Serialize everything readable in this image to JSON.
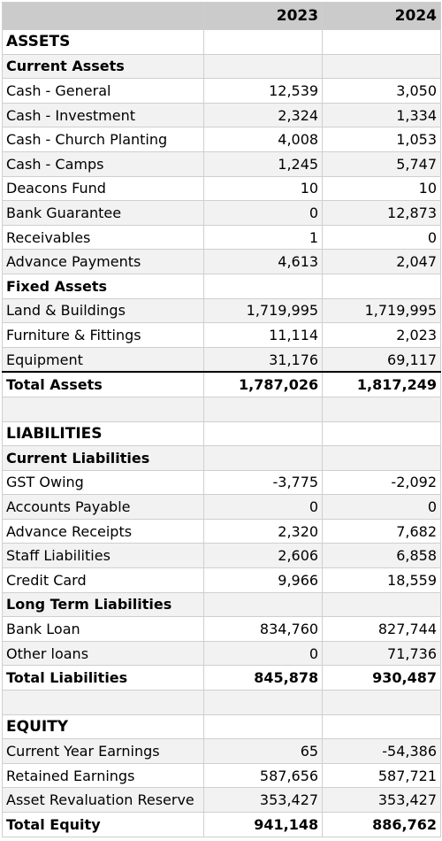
{
  "header": {
    "columns": [
      "2023",
      "2024"
    ]
  },
  "sections": [
    {
      "title": "ASSETS",
      "groups": [
        {
          "title": "Current Assets",
          "rows": [
            [
              "Cash - General",
              "12,539",
              "3,050"
            ],
            [
              "Cash - Investment",
              "2,324",
              "1,334"
            ],
            [
              "Cash - Church Planting",
              "4,008",
              "1,053"
            ],
            [
              "Cash - Camps",
              "1,245",
              "5,747"
            ],
            [
              "Deacons Fund",
              "10",
              "10"
            ],
            [
              "Bank Guarantee",
              "0",
              "12,873"
            ],
            [
              "Receivables",
              "1",
              "0"
            ],
            [
              "Advance Payments",
              "4,613",
              "2,047"
            ]
          ]
        },
        {
          "title": "Fixed Assets",
          "rows": [
            [
              "Land & Buildings",
              "1,719,995",
              "1,719,995"
            ],
            [
              "Furniture & Fittings",
              "11,114",
              "2,023"
            ],
            [
              "Equipment",
              "31,176",
              "69,117"
            ]
          ]
        }
      ],
      "total": [
        "Total Assets",
        "1,787,026",
        "1,817,249"
      ]
    },
    {
      "title": "LIABILITIES",
      "groups": [
        {
          "title": "Current Liabilities",
          "rows": [
            [
              "GST Owing",
              "-3,775",
              "-2,092"
            ],
            [
              "Accounts Payable",
              "0",
              "0"
            ],
            [
              "Advance Receipts",
              "2,320",
              "7,682"
            ],
            [
              "Staff Liabilities",
              "2,606",
              "6,858"
            ],
            [
              "Credit Card",
              "9,966",
              "18,559"
            ]
          ]
        },
        {
          "title": "Long Term Liabilities",
          "rows": [
            [
              "Bank Loan",
              "834,760",
              "827,744"
            ],
            [
              "Other loans",
              "0",
              "71,736"
            ]
          ]
        }
      ],
      "total": [
        "Total Liabilities",
        "845,878",
        "930,487"
      ]
    },
    {
      "title": "EQUITY",
      "groups": [
        {
          "rows": [
            [
              "Current Year Earnings",
              "65",
              "-54,386"
            ],
            [
              "Retained Earnings",
              "587,656",
              "587,721"
            ],
            [
              "Asset Revaluation Reserve",
              "353,427",
              "353,427"
            ]
          ]
        }
      ],
      "total": [
        "Total Equity",
        "941,148",
        "886,762"
      ]
    }
  ]
}
